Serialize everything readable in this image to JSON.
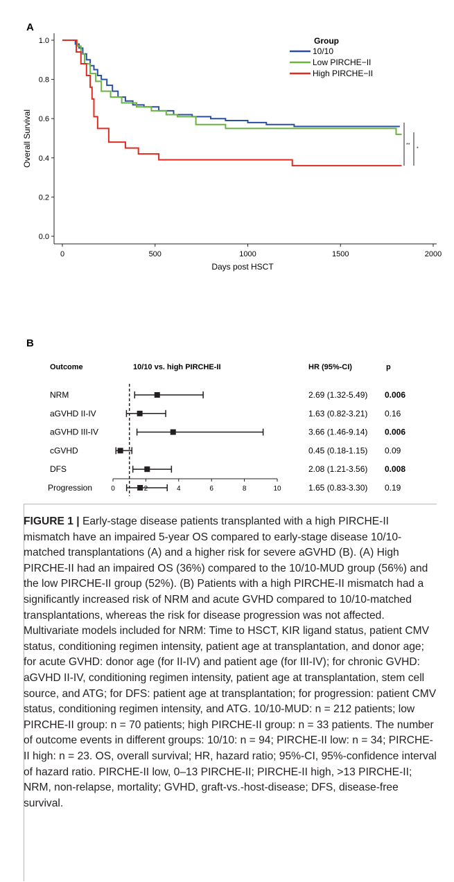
{
  "chart_data": [
    {
      "type": "line",
      "panel_label": "A",
      "xlabel": "Days post HSCT",
      "ylabel": "Overall Survival",
      "xlim": [
        0,
        2000
      ],
      "ylim": [
        0,
        1.0
      ],
      "xticks": [
        0,
        500,
        1000,
        1500,
        2000
      ],
      "yticks": [
        0.0,
        0.2,
        0.4,
        0.6,
        0.8,
        1.0
      ],
      "grid": false,
      "legend_title": "Group",
      "legend_position": "top-right",
      "series": [
        {
          "name": "10/10",
          "color": "#2b4fa0",
          "step": true,
          "points": [
            [
              0,
              1.0
            ],
            [
              60,
              1.0
            ],
            [
              70,
              0.98
            ],
            [
              90,
              0.96
            ],
            [
              110,
              0.93
            ],
            [
              130,
              0.9
            ],
            [
              150,
              0.87
            ],
            [
              170,
              0.85
            ],
            [
              190,
              0.82
            ],
            [
              210,
              0.8
            ],
            [
              240,
              0.77
            ],
            [
              270,
              0.74
            ],
            [
              300,
              0.71
            ],
            [
              340,
              0.69
            ],
            [
              380,
              0.67
            ],
            [
              440,
              0.66
            ],
            [
              520,
              0.64
            ],
            [
              600,
              0.62
            ],
            [
              700,
              0.61
            ],
            [
              800,
              0.6
            ],
            [
              880,
              0.59
            ],
            [
              1000,
              0.58
            ],
            [
              1100,
              0.57
            ],
            [
              1250,
              0.56
            ],
            [
              1400,
              0.56
            ],
            [
              1820,
              0.56
            ]
          ]
        },
        {
          "name": "Low PIRCHE−II",
          "color": "#6ab43e",
          "step": true,
          "points": [
            [
              0,
              1.0
            ],
            [
              70,
              1.0
            ],
            [
              80,
              0.97
            ],
            [
              100,
              0.93
            ],
            [
              120,
              0.88
            ],
            [
              150,
              0.83
            ],
            [
              180,
              0.79
            ],
            [
              210,
              0.74
            ],
            [
              260,
              0.71
            ],
            [
              320,
              0.68
            ],
            [
              400,
              0.66
            ],
            [
              480,
              0.64
            ],
            [
              560,
              0.62
            ],
            [
              620,
              0.61
            ],
            [
              720,
              0.57
            ],
            [
              880,
              0.55
            ],
            [
              1100,
              0.55
            ],
            [
              1800,
              0.52
            ],
            [
              1830,
              0.52
            ]
          ]
        },
        {
          "name": "High PIRCHE−II",
          "color": "#e02b20",
          "step": true,
          "points": [
            [
              0,
              1.0
            ],
            [
              65,
              1.0
            ],
            [
              75,
              0.94
            ],
            [
              100,
              0.88
            ],
            [
              130,
              0.82
            ],
            [
              150,
              0.76
            ],
            [
              160,
              0.7
            ],
            [
              170,
              0.61
            ],
            [
              190,
              0.55
            ],
            [
              250,
              0.48
            ],
            [
              340,
              0.45
            ],
            [
              410,
              0.42
            ],
            [
              520,
              0.39
            ],
            [
              700,
              0.39
            ],
            [
              1240,
              0.36
            ],
            [
              1830,
              0.36
            ]
          ]
        }
      ],
      "significance": [
        "**",
        "*"
      ]
    },
    {
      "type": "forest",
      "panel_label": "B",
      "headers": {
        "outcome": "Outcome",
        "comparison": "10/10 vs. high PIRCHE-II",
        "hr": "HR (95%-CI)",
        "p": "p"
      },
      "xlim": [
        0,
        10
      ],
      "xticks": [
        0,
        2,
        4,
        6,
        8,
        10
      ],
      "reference_line": 1,
      "rows": [
        {
          "outcome": "NRM",
          "hr": 2.69,
          "lower": 1.32,
          "upper": 5.49,
          "hr_text": "2.69 (1.32-5.49)",
          "p": "0.006",
          "significant": true
        },
        {
          "outcome": "aGVHD II-IV",
          "hr": 1.63,
          "lower": 0.82,
          "upper": 3.21,
          "hr_text": "1.63 (0.82-3.21)",
          "p": "0.16",
          "significant": false
        },
        {
          "outcome": "aGVHD III-IV",
          "hr": 3.66,
          "lower": 1.46,
          "upper": 9.14,
          "hr_text": "3.66 (1.46-9.14)",
          "p": "0.006",
          "significant": true
        },
        {
          "outcome": "cGVHD",
          "hr": 0.45,
          "lower": 0.18,
          "upper": 1.15,
          "hr_text": "0.45 (0.18-1.15)",
          "p": "0.09",
          "significant": false
        },
        {
          "outcome": "DFS",
          "hr": 2.08,
          "lower": 1.21,
          "upper": 3.56,
          "hr_text": "2.08 (1.21-3.56)",
          "p": "0.008",
          "significant": true
        },
        {
          "outcome": "Progression",
          "hr": 1.65,
          "lower": 0.83,
          "upper": 3.3,
          "hr_text": "1.65 (0.83-3.30)",
          "p": "0.19",
          "significant": false
        }
      ]
    }
  ],
  "caption": {
    "label": "FIGURE 1 |",
    "text": " Early-stage disease patients transplanted with a high PIRCHE-II mismatch have an impaired 5-year OS compared to early-stage disease 10/10-matched transplantations (A) and a higher risk for severe aGVHD (B). (A) High PIRCHE-II had an impaired OS (36%) compared to the 10/10-MUD group (56%) and the low PIRCHE-II group (52%). (B) Patients with a high PIRCHE-II mismatch had a significantly increased risk of NRM and acute GVHD compared to 10/10-matched transplantations, whereas the risk for disease progression was not affected. Multivariate models included for NRM: Time to HSCT, KIR ligand status, patient CMV status, conditioning regimen intensity, patient age at transplantation, and donor age; for acute GVHD: donor age (for II-IV) and patient age (for III-IV); for chronic GVHD: aGVHD II-IV, conditioning regimen intensity, patient age at transplantation, stem cell source, and ATG; for DFS: patient age at transplantation; for progression: patient CMV status, conditioning regimen intensity, and ATG. 10/10-MUD: n = 212 patients; low PIRCHE-II group: n = 70 patients; high PIRCHE-II group: n = 33 patients. The number of outcome events in different groups: 10/10: n = 94; PIRCHE-II low: n = 34; PIRCHE-II high: n = 23. OS, overall survival; HR, hazard ratio; 95%-CI, 95%-confidence interval of hazard ratio. PIRCHE-II low, 0–13 PIRCHE-II; PIRCHE-II high, >13 PIRCHE-II; NRM, non-relapse, mortality; GVHD, graft-vs.-host-disease; DFS, disease-free survival."
  }
}
